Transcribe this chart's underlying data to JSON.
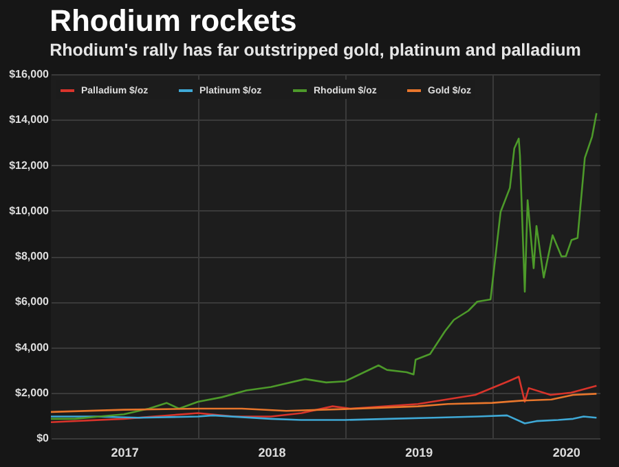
{
  "chart_data": {
    "type": "line",
    "title": "Rhodium rockets",
    "subtitle": "Rhodium's rally has far outstripped gold, platinum and palladium",
    "xlim": [
      "2017-01-01",
      "2020-09-24"
    ],
    "xticks": [
      {
        "value": "2017-07-02",
        "label": "2017"
      },
      {
        "value": "2018-07-02",
        "label": "2018"
      },
      {
        "value": "2019-07-02",
        "label": "2019"
      },
      {
        "value": "2020-07-02",
        "label": "2020"
      },
      {
        "value": "2018-01-01",
        "label": null
      },
      {
        "value": "2019-01-01",
        "label": null
      },
      {
        "value": "2020-01-01",
        "label": null
      }
    ],
    "ylim": [
      0,
      16000
    ],
    "yticks": [
      {
        "value": 0,
        "label": "$0"
      },
      {
        "value": 2000,
        "label": "$2,000"
      },
      {
        "value": 4000,
        "label": "$4,000"
      },
      {
        "value": 6000,
        "label": "$6,000"
      },
      {
        "value": 8000,
        "label": "$8,000"
      },
      {
        "value": 10000,
        "label": "$10,000"
      },
      {
        "value": 12000,
        "label": "$12,000"
      },
      {
        "value": 14000,
        "label": "$14,000"
      },
      {
        "value": 16000,
        "label": "$16,000"
      }
    ],
    "grid": true,
    "legend": "top left",
    "line_style": "solid",
    "marker": "none",
    "series": [
      {
        "name": "Palladium $/oz",
        "color": "#d9342b",
        "x": [
          "2017-01-01",
          "2017-07-01",
          "2018-01-01",
          "2018-04-01",
          "2018-07-01",
          "2018-09-15",
          "2018-12-01",
          "2019-01-15",
          "2019-07-01",
          "2019-11-20",
          "2020-02-10",
          "2020-03-07",
          "2020-03-22",
          "2020-04-01",
          "2020-05-25",
          "2020-07-15",
          "2020-09-16"
        ],
        "values": [
          700,
          850,
          1100,
          950,
          950,
          1100,
          1400,
          1300,
          1500,
          1900,
          2500,
          2700,
          1600,
          2200,
          1900,
          2000,
          2300
        ]
      },
      {
        "name": "Platinum $/oz",
        "color": "#3fa9d6",
        "x": [
          "2017-01-01",
          "2017-04-20",
          "2017-08-08",
          "2018-01-01",
          "2018-02-07",
          "2018-07-01",
          "2018-09-13",
          "2019-01-01",
          "2019-04-20",
          "2019-08-08",
          "2019-11-25",
          "2020-02-07",
          "2020-03-22",
          "2020-04-20",
          "2020-06-13",
          "2020-07-20",
          "2020-08-15",
          "2020-09-16"
        ],
        "values": [
          950,
          950,
          900,
          950,
          1000,
          850,
          800,
          800,
          850,
          900,
          950,
          1000,
          650,
          750,
          800,
          850,
          950,
          900
        ]
      },
      {
        "name": "Rhodium $/oz",
        "color": "#4d9a2a",
        "x": [
          "2017-01-01",
          "2017-03-01",
          "2017-05-01",
          "2017-07-01",
          "2017-09-01",
          "2017-10-15",
          "2017-11-15",
          "2018-01-01",
          "2018-03-01",
          "2018-05-01",
          "2018-07-01",
          "2018-09-24",
          "2018-11-15",
          "2019-01-01",
          "2019-03-25",
          "2019-04-15",
          "2019-06-03",
          "2019-06-20",
          "2019-06-25",
          "2019-07-31",
          "2019-09-06",
          "2019-09-28",
          "2019-11-03",
          "2019-11-25",
          "2019-12-28",
          "2020-01-22",
          "2020-02-14",
          "2020-02-25",
          "2020-03-07",
          "2020-03-10",
          "2020-03-22",
          "2020-03-29",
          "2020-04-13",
          "2020-04-20",
          "2020-05-08",
          "2020-05-30",
          "2020-06-21",
          "2020-07-02",
          "2020-07-16",
          "2020-07-31",
          "2020-08-18",
          "2020-09-05",
          "2020-09-16"
        ],
        "values": [
          850,
          850,
          950,
          1050,
          1300,
          1550,
          1300,
          1600,
          1800,
          2100,
          2250,
          2600,
          2450,
          2500,
          3200,
          3000,
          2900,
          2800,
          3450,
          3700,
          4700,
          5200,
          5600,
          6000,
          6100,
          9950,
          11000,
          12740,
          13170,
          12430,
          6440,
          10460,
          7470,
          9330,
          7060,
          8920,
          7990,
          8000,
          8710,
          8800,
          12320,
          13250,
          14290
        ]
      },
      {
        "name": "Gold $/oz",
        "color": "#e8762c",
        "x": [
          "2017-01-01",
          "2017-07-01",
          "2018-01-01",
          "2018-04-20",
          "2018-08-08",
          "2019-01-01",
          "2019-07-01",
          "2019-09-13",
          "2020-01-01",
          "2020-03-14",
          "2020-05-27",
          "2020-07-20",
          "2020-09-16"
        ],
        "values": [
          1150,
          1250,
          1300,
          1300,
          1200,
          1280,
          1400,
          1500,
          1550,
          1650,
          1700,
          1900,
          1950
        ]
      }
    ]
  }
}
